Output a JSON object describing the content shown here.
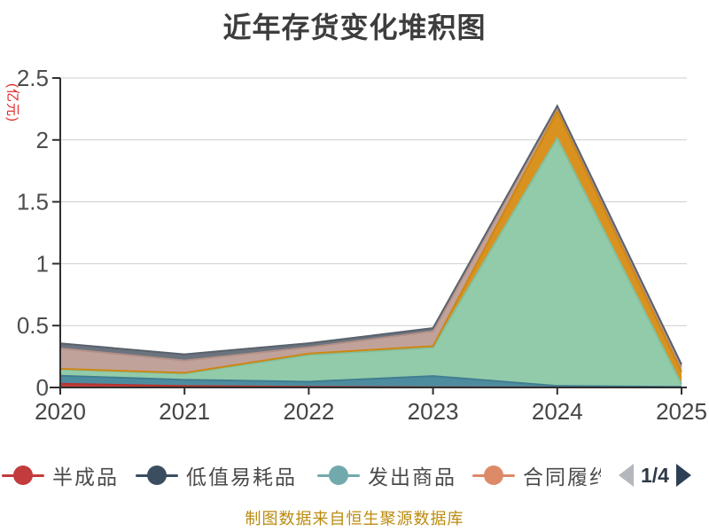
{
  "title": "近年存货变化堆积图",
  "y_axis": {
    "name": "(亿元)",
    "name_color": "#e02020",
    "ticks": [
      "0",
      "0.5",
      "1",
      "1.5",
      "2",
      "2.5"
    ],
    "tick_values": [
      0,
      0.5,
      1,
      1.5,
      2,
      2.5
    ],
    "label_color": "#4d4d4d"
  },
  "x_axis": {
    "labels": [
      "2020",
      "2021",
      "2022",
      "2023",
      "2024",
      "2025"
    ],
    "label_color": "#454545"
  },
  "chart_data": {
    "type": "area",
    "stacked": true,
    "title": "近年存货变化堆积图",
    "ylabel": "(亿元)",
    "x": [
      2020,
      2021,
      2022,
      2023,
      2024,
      2025
    ],
    "ylim": [
      0,
      2.5
    ],
    "grid": true,
    "legend_position": "bottom",
    "series": [
      {
        "name": "半成品",
        "fill": "#c04038",
        "line": "#b5332f",
        "values": [
          0.03,
          0.012,
          0.005,
          0.002,
          0.001,
          0.001
        ]
      },
      {
        "name": "低值易耗品",
        "fill": "#4d8c9f",
        "line": "#417d90",
        "values": [
          0.065,
          0.05,
          0.042,
          0.09,
          0.012,
          0.004
        ]
      },
      {
        "name": "发出商品",
        "fill": "#92cbaa",
        "line": "#83bf9c",
        "values": [
          0.05,
          0.05,
          0.215,
          0.23,
          2.0,
          0.02
        ]
      },
      {
        "name": "合同履约",
        "fill": "#d9921f",
        "line": "#cc8714",
        "values": [
          0.006,
          0.006,
          0.012,
          0.012,
          0.22,
          0.1
        ]
      },
      {
        "name": "",
        "fill": "#c1a29b",
        "line": "#b39086",
        "values": [
          0.165,
          0.1,
          0.05,
          0.12,
          0.03,
          0.04
        ]
      },
      {
        "name": "",
        "fill": "#6b747e",
        "line": "#59626c",
        "values": [
          0.04,
          0.05,
          0.033,
          0.026,
          0.012,
          0.02
        ]
      }
    ]
  },
  "legend": {
    "items": [
      {
        "label": "半成品",
        "color": "#c33b3d"
      },
      {
        "label": "低值易耗品",
        "color": "#3b4e60"
      },
      {
        "label": "发出商品",
        "color": "#72a9ad"
      },
      {
        "label": "合同履约",
        "color": "#dc8a68"
      }
    ],
    "pager": {
      "label": "1/4",
      "prev_color": "#b4b8bc",
      "next_color": "#2d3f54"
    }
  },
  "footer": {
    "text": "制图数据来自恒生聚源数据库",
    "color": "#bb8b0e"
  }
}
